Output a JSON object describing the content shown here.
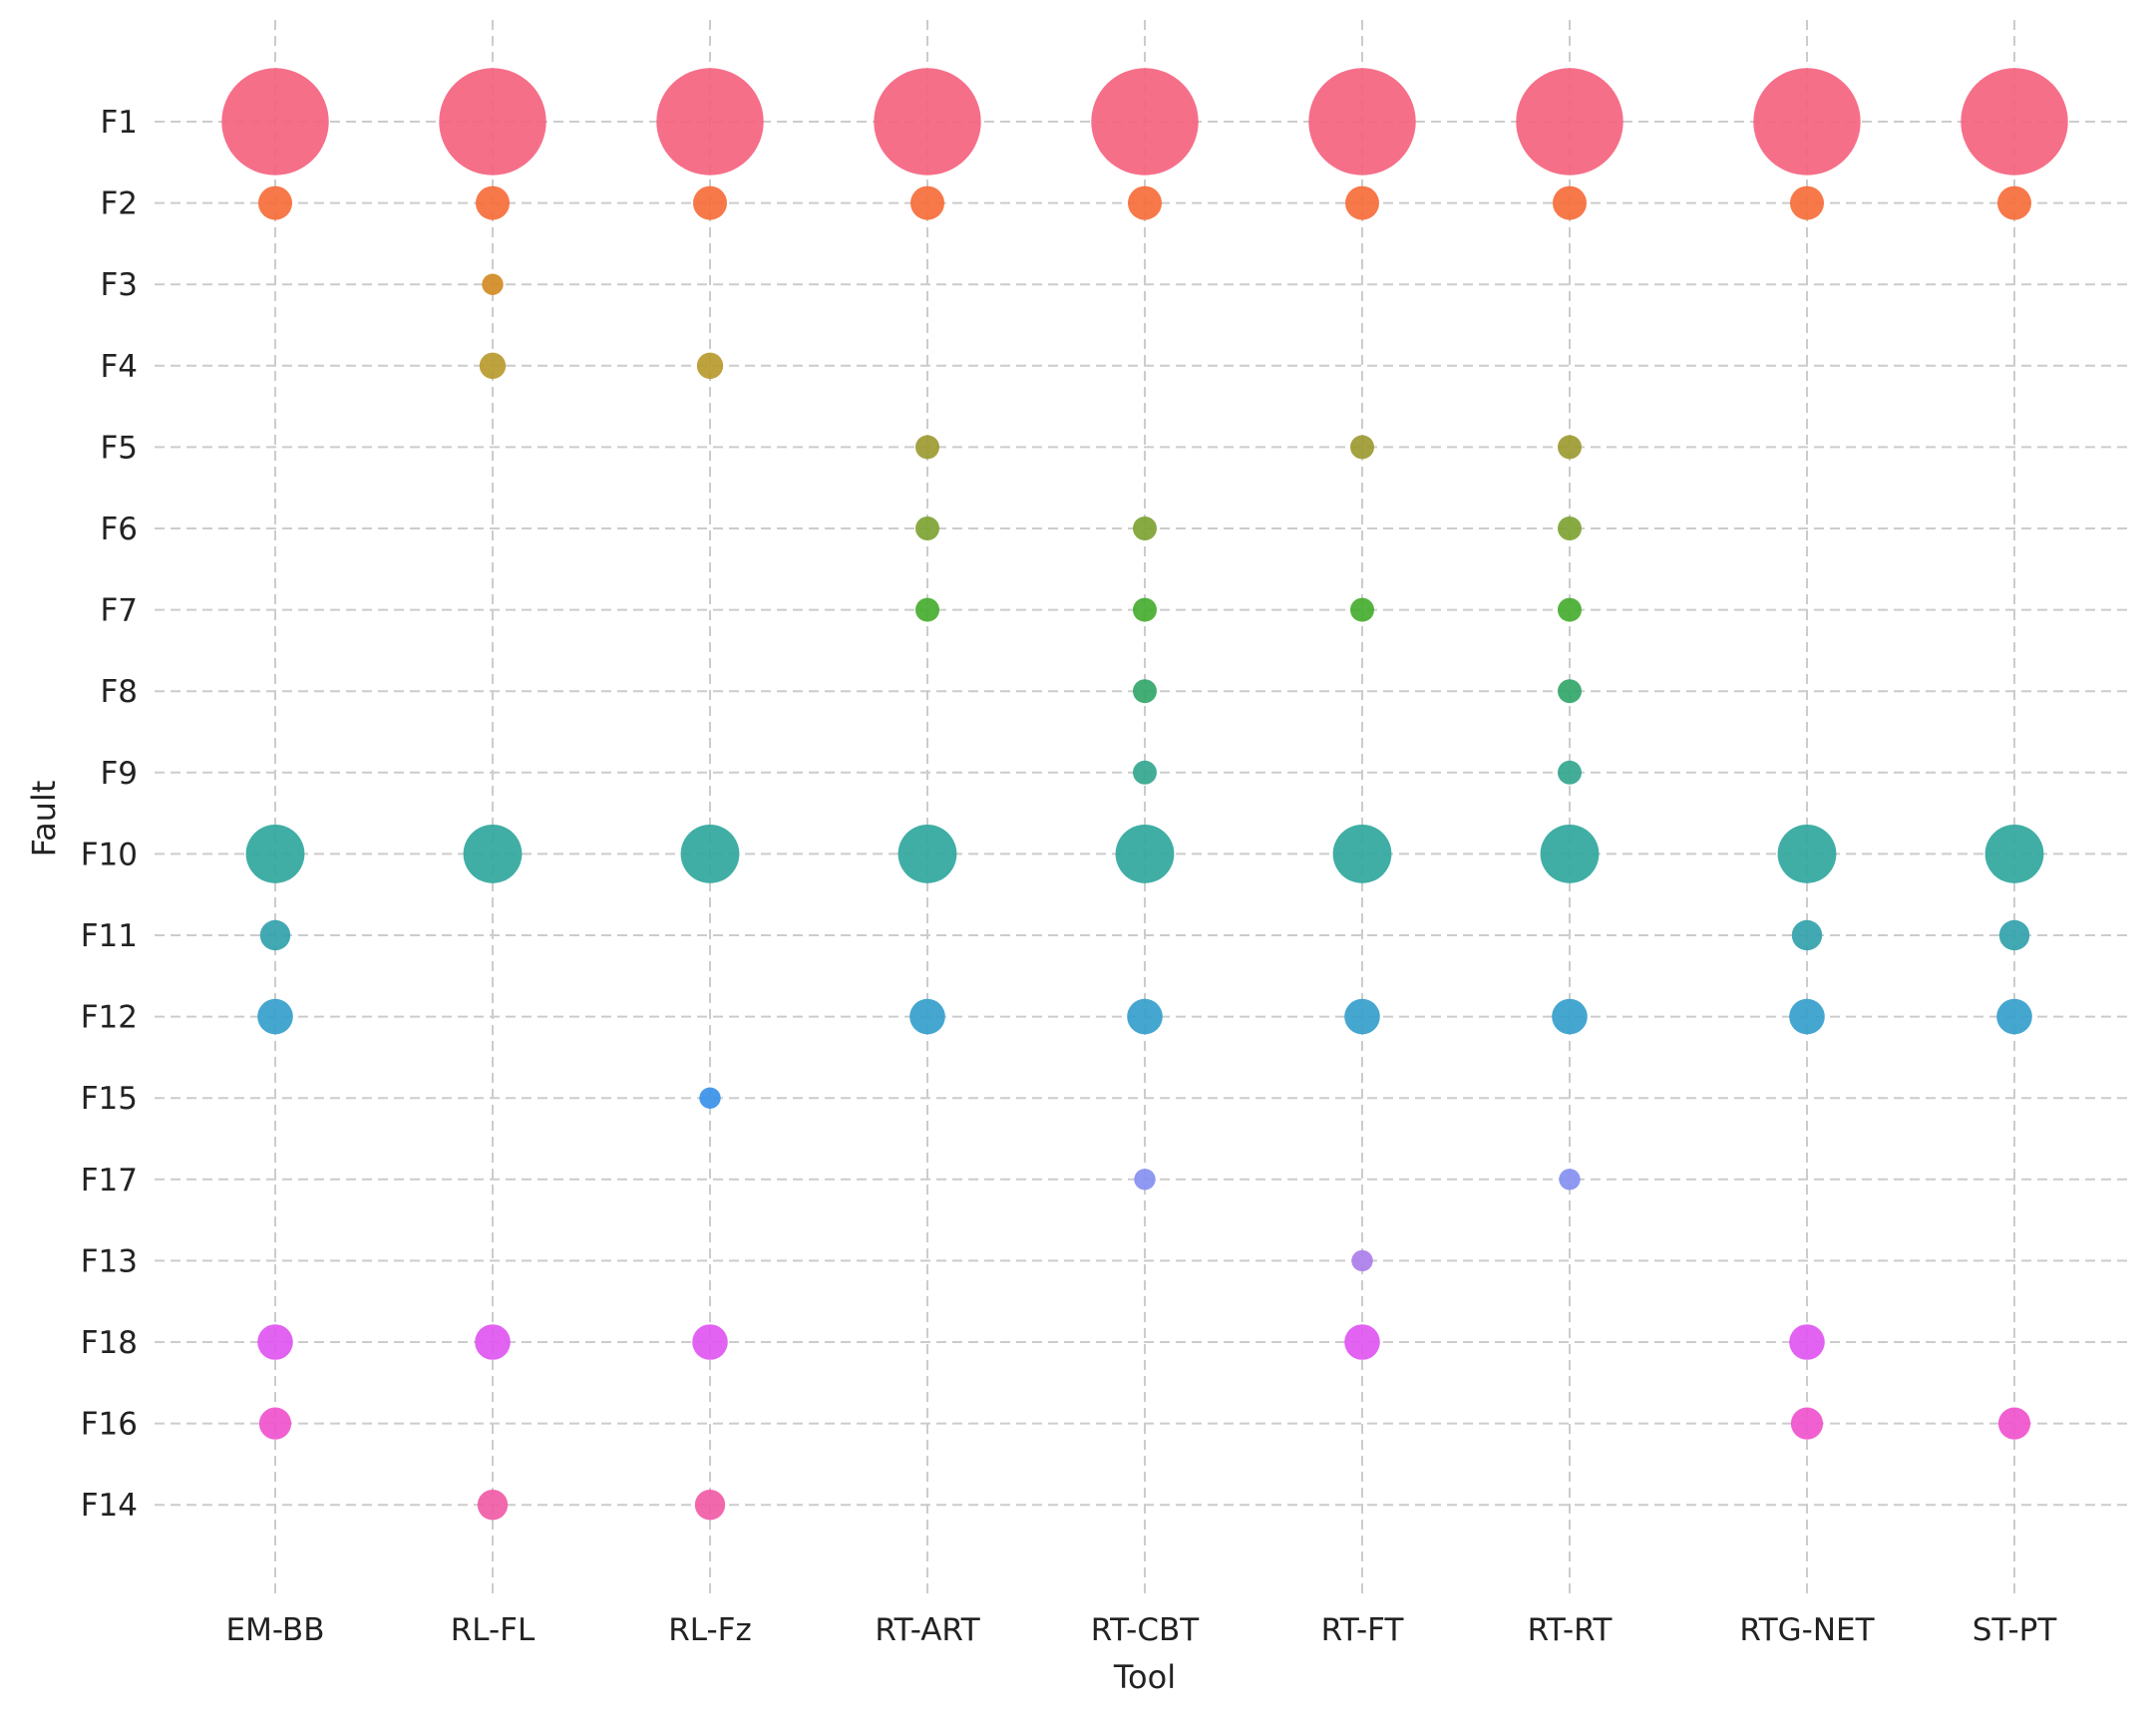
{
  "chart_data": {
    "type": "scatter",
    "xlabel": "Tool",
    "ylabel": "Fault",
    "grid": true,
    "legend": "none",
    "size_encoding": "count",
    "x_categories": [
      "EM-BB",
      "RL-FL",
      "RL-Fz",
      "RT-ART",
      "RT-CBT",
      "RT-FT",
      "RT-RT",
      "RTG-NET",
      "ST-PT"
    ],
    "y_categories": [
      "F1",
      "F2",
      "F3",
      "F4",
      "F5",
      "F6",
      "F7",
      "F8",
      "F9",
      "F10",
      "F11",
      "F12",
      "F15",
      "F17",
      "F13",
      "F18",
      "F16",
      "F14"
    ],
    "fault_colors": {
      "F1": "#f5637f",
      "F2": "#f66d3a",
      "F3": "#d38b25",
      "F4": "#b99a2e",
      "F5": "#9d9a31",
      "F6": "#7ea333",
      "F7": "#46ad2f",
      "F8": "#33a66a",
      "F9": "#33a68e",
      "F10": "#30a79d",
      "F11": "#32a2ad",
      "F12": "#35a0cc",
      "F15": "#3b91ea",
      "F17": "#8590f1",
      "F13": "#ad7eeb",
      "F18": "#e055f1",
      "F16": "#f052cc",
      "F14": "#f15ba6"
    },
    "points": [
      {
        "tool": "EM-BB",
        "fault": "F1",
        "value": 50
      },
      {
        "tool": "RL-FL",
        "fault": "F1",
        "value": 50
      },
      {
        "tool": "RL-Fz",
        "fault": "F1",
        "value": 50
      },
      {
        "tool": "RT-ART",
        "fault": "F1",
        "value": 50
      },
      {
        "tool": "RT-CBT",
        "fault": "F1",
        "value": 50
      },
      {
        "tool": "RT-FT",
        "fault": "F1",
        "value": 50
      },
      {
        "tool": "RT-RT",
        "fault": "F1",
        "value": 50
      },
      {
        "tool": "RTG-NET",
        "fault": "F1",
        "value": 50
      },
      {
        "tool": "ST-PT",
        "fault": "F1",
        "value": 50
      },
      {
        "tool": "EM-BB",
        "fault": "F2",
        "value": 5
      },
      {
        "tool": "RL-FL",
        "fault": "F2",
        "value": 5
      },
      {
        "tool": "RL-Fz",
        "fault": "F2",
        "value": 5
      },
      {
        "tool": "RT-ART",
        "fault": "F2",
        "value": 5
      },
      {
        "tool": "RT-CBT",
        "fault": "F2",
        "value": 5
      },
      {
        "tool": "RT-FT",
        "fault": "F2",
        "value": 5
      },
      {
        "tool": "RT-RT",
        "fault": "F2",
        "value": 5
      },
      {
        "tool": "RTG-NET",
        "fault": "F2",
        "value": 5
      },
      {
        "tool": "ST-PT",
        "fault": "F2",
        "value": 5
      },
      {
        "tool": "RL-FL",
        "fault": "F3",
        "value": 2
      },
      {
        "tool": "RL-FL",
        "fault": "F4",
        "value": 3
      },
      {
        "tool": "RL-Fz",
        "fault": "F4",
        "value": 3
      },
      {
        "tool": "RT-ART",
        "fault": "F5",
        "value": 2.5
      },
      {
        "tool": "RT-FT",
        "fault": "F5",
        "value": 2.5
      },
      {
        "tool": "RT-RT",
        "fault": "F5",
        "value": 2.5
      },
      {
        "tool": "RT-ART",
        "fault": "F6",
        "value": 2.5
      },
      {
        "tool": "RT-CBT",
        "fault": "F6",
        "value": 2.5
      },
      {
        "tool": "RT-RT",
        "fault": "F6",
        "value": 2.5
      },
      {
        "tool": "RT-ART",
        "fault": "F7",
        "value": 2.5
      },
      {
        "tool": "RT-CBT",
        "fault": "F7",
        "value": 2.5
      },
      {
        "tool": "RT-FT",
        "fault": "F7",
        "value": 2.5
      },
      {
        "tool": "RT-RT",
        "fault": "F7",
        "value": 2.5
      },
      {
        "tool": "RT-CBT",
        "fault": "F8",
        "value": 2.5
      },
      {
        "tool": "RT-RT",
        "fault": "F8",
        "value": 2.5
      },
      {
        "tool": "RT-CBT",
        "fault": "F9",
        "value": 2.5
      },
      {
        "tool": "RT-RT",
        "fault": "F9",
        "value": 2.5
      },
      {
        "tool": "EM-BB",
        "fault": "F10",
        "value": 15
      },
      {
        "tool": "RL-FL",
        "fault": "F10",
        "value": 15
      },
      {
        "tool": "RL-Fz",
        "fault": "F10",
        "value": 15
      },
      {
        "tool": "RT-ART",
        "fault": "F10",
        "value": 15
      },
      {
        "tool": "RT-CBT",
        "fault": "F10",
        "value": 15
      },
      {
        "tool": "RT-FT",
        "fault": "F10",
        "value": 15
      },
      {
        "tool": "RT-RT",
        "fault": "F10",
        "value": 15
      },
      {
        "tool": "RTG-NET",
        "fault": "F10",
        "value": 15
      },
      {
        "tool": "ST-PT",
        "fault": "F10",
        "value": 15
      },
      {
        "tool": "EM-BB",
        "fault": "F11",
        "value": 4
      },
      {
        "tool": "RTG-NET",
        "fault": "F11",
        "value": 4
      },
      {
        "tool": "ST-PT",
        "fault": "F11",
        "value": 4
      },
      {
        "tool": "EM-BB",
        "fault": "F12",
        "value": 5.5
      },
      {
        "tool": "RT-ART",
        "fault": "F12",
        "value": 5.5
      },
      {
        "tool": "RT-CBT",
        "fault": "F12",
        "value": 5.5
      },
      {
        "tool": "RT-FT",
        "fault": "F12",
        "value": 5.5
      },
      {
        "tool": "RT-RT",
        "fault": "F12",
        "value": 5.5
      },
      {
        "tool": "RTG-NET",
        "fault": "F12",
        "value": 5.5
      },
      {
        "tool": "ST-PT",
        "fault": "F12",
        "value": 5.5
      },
      {
        "tool": "RL-Fz",
        "fault": "F15",
        "value": 2
      },
      {
        "tool": "RT-CBT",
        "fault": "F17",
        "value": 2
      },
      {
        "tool": "RT-RT",
        "fault": "F17",
        "value": 2
      },
      {
        "tool": "RT-FT",
        "fault": "F13",
        "value": 2
      },
      {
        "tool": "EM-BB",
        "fault": "F18",
        "value": 5.5
      },
      {
        "tool": "RL-FL",
        "fault": "F18",
        "value": 5.5
      },
      {
        "tool": "RL-Fz",
        "fault": "F18",
        "value": 5.5
      },
      {
        "tool": "RT-FT",
        "fault": "F18",
        "value": 5.5
      },
      {
        "tool": "RTG-NET",
        "fault": "F18",
        "value": 5.5
      },
      {
        "tool": "EM-BB",
        "fault": "F16",
        "value": 4.5
      },
      {
        "tool": "RTG-NET",
        "fault": "F16",
        "value": 4.5
      },
      {
        "tool": "ST-PT",
        "fault": "F16",
        "value": 4.5
      },
      {
        "tool": "RL-FL",
        "fault": "F14",
        "value": 4
      },
      {
        "tool": "RL-Fz",
        "fault": "F14",
        "value": 4
      }
    ]
  }
}
